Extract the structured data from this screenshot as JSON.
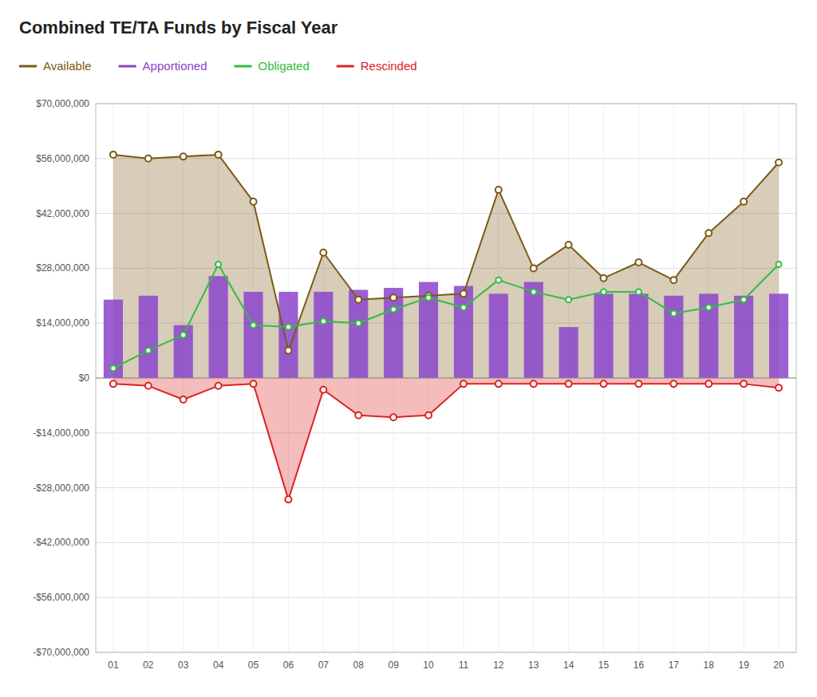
{
  "chart_data": {
    "type": "combo",
    "title": "Combined TE/TA Funds by Fiscal Year",
    "categories": [
      "01",
      "02",
      "03",
      "04",
      "05",
      "06",
      "07",
      "08",
      "09",
      "10",
      "11",
      "12",
      "13",
      "14",
      "15",
      "16",
      "17",
      "18",
      "19",
      "20"
    ],
    "series": [
      {
        "name": "Available",
        "type": "area",
        "color": "#7B5B14",
        "marker": "circle",
        "line_style": "solid",
        "values": [
          57000000,
          56000000,
          56500000,
          57000000,
          45000000,
          7000000,
          32000000,
          20000000,
          20500000,
          21000000,
          21500000,
          48000000,
          28000000,
          34000000,
          25500000,
          29500000,
          25000000,
          37000000,
          45000000,
          55000000
        ]
      },
      {
        "name": "Apportioned",
        "type": "bar",
        "color": "#8B44CC",
        "values": [
          20000000,
          21000000,
          13500000,
          26000000,
          22000000,
          22000000,
          22000000,
          22500000,
          23000000,
          24500000,
          23500000,
          21500000,
          24500000,
          13000000,
          21500000,
          21500000,
          21000000,
          21500000,
          21000000,
          21500000
        ]
      },
      {
        "name": "Obligated",
        "type": "line",
        "color": "#33BB44",
        "marker": "circle",
        "line_style": "solid",
        "values": [
          2500000,
          7000000,
          11000000,
          29000000,
          13500000,
          13000000,
          14500000,
          14000000,
          17500000,
          20500000,
          18000000,
          25000000,
          22000000,
          20000000,
          22000000,
          22000000,
          16500000,
          18000000,
          20000000,
          29000000
        ]
      },
      {
        "name": "Rescinded",
        "type": "area",
        "color": "#DD2222",
        "marker": "circle",
        "line_style": "solid",
        "values": [
          -1500000,
          -2000000,
          -5500000,
          -2000000,
          -1500000,
          -31000000,
          -3000000,
          -9500000,
          -10000000,
          -9500000,
          -1500000,
          -1500000,
          -1500000,
          -1500000,
          -1500000,
          -1500000,
          -1500000,
          -1500000,
          -1500000,
          -2500000
        ]
      }
    ],
    "ylim": [
      -70000000,
      70000000
    ],
    "yticks": [
      {
        "value": -70000000,
        "label": "-$70,000,000"
      },
      {
        "value": -56000000,
        "label": "-$56,000,000"
      },
      {
        "value": -42000000,
        "label": "-$42,000,000"
      },
      {
        "value": -28000000,
        "label": "-$28,000,000"
      },
      {
        "value": -14000000,
        "label": "-$14,000,000"
      },
      {
        "value": 0,
        "label": "$0"
      },
      {
        "value": 14000000,
        "label": "$14,000,000"
      },
      {
        "value": 28000000,
        "label": "$28,000,000"
      },
      {
        "value": 42000000,
        "label": "$42,000,000"
      },
      {
        "value": 56000000,
        "label": "$56,000,000"
      },
      {
        "value": 70000000,
        "label": "$70,000,000"
      }
    ],
    "grid": true,
    "legend": "top-left"
  }
}
